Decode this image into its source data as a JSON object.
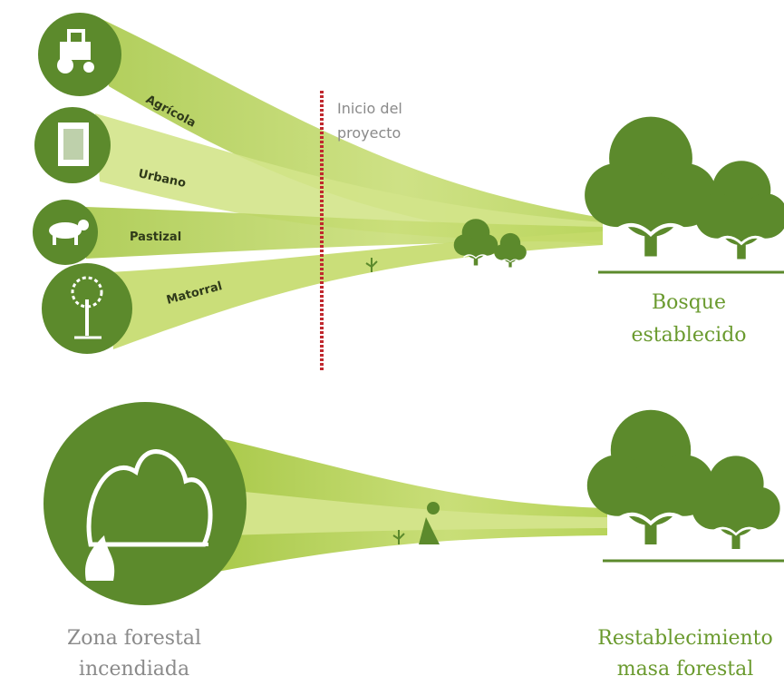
{
  "top": {
    "sources": [
      "Agrícola",
      "Urbano",
      "Pastizal",
      "Matorral"
    ],
    "marker": [
      "Inicio del",
      "proyecto"
    ],
    "outcome": [
      "Bosque",
      "establecido"
    ]
  },
  "bottom": {
    "source": [
      "Zona forestal",
      "incendiada"
    ],
    "outcome": [
      "Restablecimiento",
      "masa forestal"
    ]
  }
}
